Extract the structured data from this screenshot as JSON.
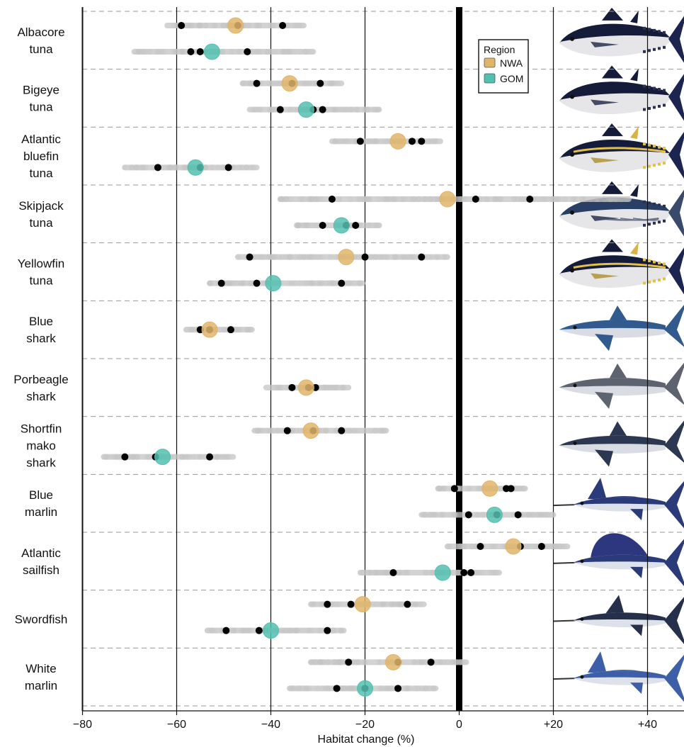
{
  "chart_data": {
    "type": "scatter",
    "xlabel": "Habitat change (%)",
    "xlim": [
      -80,
      48
    ],
    "x_ticks": [
      {
        "value": -80,
        "label": "−80"
      },
      {
        "value": -60,
        "label": "−60"
      },
      {
        "value": -40,
        "label": "−40"
      },
      {
        "value": -20,
        "label": "−20"
      },
      {
        "value": 0,
        "label": "0"
      },
      {
        "value": 20,
        "label": "+20"
      },
      {
        "value": 40,
        "label": "+40"
      }
    ],
    "vertical_gridlines": [
      -80,
      -60,
      -40,
      -20,
      20,
      40
    ],
    "zero_line": 0,
    "legend": {
      "title": "Region",
      "placement": "top-right",
      "entries": [
        {
          "name": "NWA",
          "color": "#e0b56a"
        },
        {
          "name": "GOM",
          "color": "#52c0b0"
        }
      ]
    },
    "colors": {
      "NWA": "#e0b56a",
      "GOM": "#52c0b0",
      "range": "#c4c4c4",
      "point": "#000000"
    },
    "species": [
      {
        "name_lines": [
          "Albacore",
          "tuna"
        ],
        "fish": "tuna-dark",
        "rows": [
          {
            "region": "NWA",
            "mean": -47.5,
            "range": [
              -62,
              -33
            ],
            "points": [
              -59,
              -47,
              -37.5
            ]
          },
          {
            "region": "GOM",
            "mean": -52.5,
            "range": [
              -69,
              -31
            ],
            "points": [
              -57,
              -55,
              -45
            ]
          }
        ]
      },
      {
        "name_lines": [
          "Bigeye",
          "tuna"
        ],
        "fish": "tuna-dark",
        "rows": [
          {
            "region": "NWA",
            "mean": -36,
            "range": [
              -46,
              -25
            ],
            "points": [
              -43,
              -35.5,
              -29.5
            ]
          },
          {
            "region": "GOM",
            "mean": -32.5,
            "range": [
              -44.5,
              -17
            ],
            "points": [
              -38,
              -31,
              -29
            ]
          }
        ]
      },
      {
        "name_lines": [
          "Atlantic",
          "bluefin",
          "tuna"
        ],
        "fish": "tuna-gold",
        "rows": [
          {
            "region": "NWA",
            "mean": -13,
            "range": [
              -27,
              -4
            ],
            "points": [
              -21,
              -10,
              -8
            ]
          },
          {
            "region": "GOM",
            "mean": -56,
            "range": [
              -71,
              -43
            ],
            "points": [
              -64,
              -55,
              -49
            ]
          }
        ]
      },
      {
        "name_lines": [
          "Skipjack",
          "tuna"
        ],
        "fish": "tuna-skip",
        "rows": [
          {
            "region": "NWA",
            "mean": -2.5,
            "range": [
              -38,
              36
            ],
            "points": [
              -27,
              3.5,
              15
            ]
          },
          {
            "region": "GOM",
            "mean": -25,
            "range": [
              -34.5,
              -17
            ],
            "points": [
              -29,
              -24,
              -22
            ]
          }
        ]
      },
      {
        "name_lines": [
          "Yellowfin",
          "tuna"
        ],
        "fish": "tuna-gold",
        "rows": [
          {
            "region": "NWA",
            "mean": -24,
            "range": [
              -47,
              -2.5
            ],
            "points": [
              -44.5,
              -20,
              -8
            ]
          },
          {
            "region": "GOM",
            "mean": -39.5,
            "range": [
              -53,
              -20.5
            ],
            "points": [
              -50.5,
              -43,
              -25
            ]
          }
        ]
      },
      {
        "name_lines": [
          "Blue",
          "shark"
        ],
        "fish": "shark-blue",
        "rows": [
          {
            "region": "NWA",
            "mean": -53,
            "range": [
              -58,
              -44
            ],
            "points": [
              -55,
              -53,
              -48.5
            ]
          }
        ]
      },
      {
        "name_lines": [
          "Porbeagle",
          "shark"
        ],
        "fish": "shark-grey",
        "rows": [
          {
            "region": "NWA",
            "mean": -32.5,
            "range": [
              -41,
              -23.5
            ],
            "points": [
              -35.5,
              -32,
              -30.5
            ]
          }
        ]
      },
      {
        "name_lines": [
          "Shortfin",
          "mako",
          "shark"
        ],
        "fish": "shark-mako",
        "rows": [
          {
            "region": "NWA",
            "mean": -31.5,
            "range": [
              -43.5,
              -15.5
            ],
            "points": [
              -36.5,
              -31,
              -25
            ]
          },
          {
            "region": "GOM",
            "mean": -63,
            "range": [
              -75.5,
              -48
            ],
            "points": [
              -71,
              -64.5,
              -53
            ]
          }
        ]
      },
      {
        "name_lines": [
          "Blue",
          "marlin"
        ],
        "fish": "marlin",
        "rows": [
          {
            "region": "NWA",
            "mean": 6.5,
            "range": [
              -4.5,
              14
            ],
            "points": [
              -1,
              10,
              11
            ]
          },
          {
            "region": "GOM",
            "mean": 7.5,
            "range": [
              -8,
              20
            ],
            "points": [
              2,
              8,
              12.5
            ]
          }
        ]
      },
      {
        "name_lines": [
          "Atlantic",
          "sailfish"
        ],
        "fish": "sailfish",
        "rows": [
          {
            "region": "NWA",
            "mean": 11.5,
            "range": [
              -2.5,
              23
            ],
            "points": [
              4.5,
              13,
              17.5
            ]
          },
          {
            "region": "GOM",
            "mean": -3.5,
            "range": [
              -21,
              8.5
            ],
            "points": [
              -14,
              1,
              2.5
            ]
          }
        ]
      },
      {
        "name_lines": [
          "Swordfish"
        ],
        "fish": "swordfish",
        "rows": [
          {
            "region": "NWA",
            "mean": -20.5,
            "range": [
              -31.5,
              -7.5
            ],
            "points": [
              -28,
              -23,
              -11
            ]
          },
          {
            "region": "GOM",
            "mean": -40,
            "range": [
              -53.5,
              -24.5
            ],
            "points": [
              -49.5,
              -42.5,
              -28
            ]
          }
        ]
      },
      {
        "name_lines": [
          "White",
          "marlin"
        ],
        "fish": "marlin-white",
        "rows": [
          {
            "region": "NWA",
            "mean": -14,
            "range": [
              -31.5,
              1.5
            ],
            "points": [
              -23.5,
              -13,
              -6
            ]
          },
          {
            "region": "GOM",
            "mean": -20,
            "range": [
              -36,
              -5
            ],
            "points": [
              -26,
              -20,
              -13
            ]
          }
        ]
      }
    ]
  }
}
